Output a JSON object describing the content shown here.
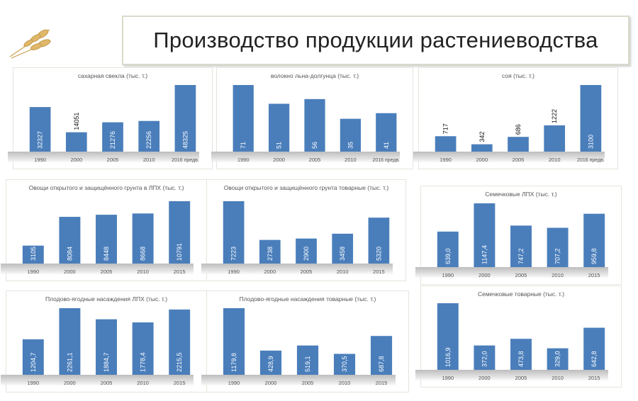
{
  "header": {
    "title": "Производство продукции растениеводства"
  },
  "colors": {
    "bar": "#4a7ebb",
    "label_inside": "#ffffff",
    "label_outside": "#111111",
    "axis_text": "#555555"
  },
  "chart_data": [
    {
      "id": "sugar-beet",
      "type": "bar",
      "title": "сахарная свекла (тыс. т.)",
      "categories": [
        "1990",
        "2000",
        "2005",
        "2010",
        "2016 предв."
      ],
      "values": [
        32327,
        14051,
        21276,
        22256,
        48325
      ],
      "value_labels": [
        "32327",
        "14051",
        "21276",
        "22256",
        "48325"
      ],
      "labels_outside": [
        1
      ]
    },
    {
      "id": "flax",
      "type": "bar",
      "title": "волокно  льна-долгунца (тыс. т.)",
      "categories": [
        "1990",
        "2000",
        "2005",
        "2010",
        "2016 предв."
      ],
      "values": [
        71,
        51,
        56,
        35,
        41
      ],
      "value_labels": [
        "71",
        "51",
        "56",
        "35",
        "41"
      ],
      "labels_outside": []
    },
    {
      "id": "soy",
      "type": "bar",
      "title": "соя (тыс. т.)",
      "categories": [
        "1990",
        "2000",
        "2005",
        "2010",
        "2016 предв."
      ],
      "values": [
        717,
        342,
        686,
        1222,
        3100
      ],
      "value_labels": [
        "717",
        "342",
        "686",
        "1222",
        "3100"
      ],
      "labels_outside": [
        0,
        1,
        2,
        3
      ]
    },
    {
      "id": "veg-lph",
      "type": "bar",
      "title": "Овощи открытого и защищённого грунта в ЛПХ (тыс. т.)",
      "categories": [
        "1990",
        "2000",
        "2005",
        "2010",
        "2015"
      ],
      "values": [
        3105,
        8084,
        8448,
        8668,
        10791
      ],
      "value_labels": [
        "3105",
        "8084",
        "8448",
        "8668",
        "10791"
      ],
      "labels_outside": []
    },
    {
      "id": "veg-commercial",
      "type": "bar",
      "title": "Овощи открытого и защищённого грунта товарные (тыс. т.)",
      "categories": [
        "1990",
        "2000",
        "2005",
        "2010",
        "2015"
      ],
      "values": [
        7223,
        2738,
        2900,
        3458,
        5320
      ],
      "value_labels": [
        "7223",
        "2738",
        "2900",
        "3458",
        "5320"
      ],
      "labels_outside": []
    },
    {
      "id": "seeds-lph",
      "type": "bar",
      "title": "Семечковые ЛПХ (тыс. т.)",
      "categories": [
        "1990",
        "2000",
        "2005",
        "2010",
        "2015"
      ],
      "values": [
        639.0,
        1147.4,
        747.2,
        707.2,
        959.8
      ],
      "value_labels": [
        "639,0",
        "1147,4",
        "747,2",
        "707,2",
        "959,8"
      ],
      "labels_outside": []
    },
    {
      "id": "fruit-lph",
      "type": "bar",
      "title": "Плодово-ягодные насаждения ЛПХ (тыс. т.)",
      "categories": [
        "1990",
        "2000",
        "2005",
        "2010",
        "2015"
      ],
      "values": [
        1204.7,
        2261.1,
        1884.7,
        1778.4,
        2215.5
      ],
      "value_labels": [
        "1204,7",
        "2261,1",
        "1884,7",
        "1778,4",
        "2215,5"
      ],
      "labels_outside": []
    },
    {
      "id": "fruit-commercial",
      "type": "bar",
      "title": "Плодово-ягодные насаждения товарные (тыс. т.)",
      "categories": [
        "1990",
        "2000",
        "2005",
        "2010",
        "2015"
      ],
      "values": [
        1179.8,
        428.9,
        519.1,
        370.5,
        687.8
      ],
      "value_labels": [
        "1179,8",
        "428,9",
        "519,1",
        "370,5",
        "687,8"
      ],
      "labels_outside": []
    },
    {
      "id": "seeds-commercial",
      "type": "bar",
      "title": "Семечковые товарные (тыс. т.)",
      "categories": [
        "1990",
        "2000",
        "2005",
        "2010",
        "2015"
      ],
      "values": [
        1016.9,
        372.0,
        473.8,
        329.0,
        642.8
      ],
      "value_labels": [
        "1016,9",
        "372,0",
        "473,8",
        "329,0",
        "642,8"
      ],
      "labels_outside": []
    }
  ]
}
